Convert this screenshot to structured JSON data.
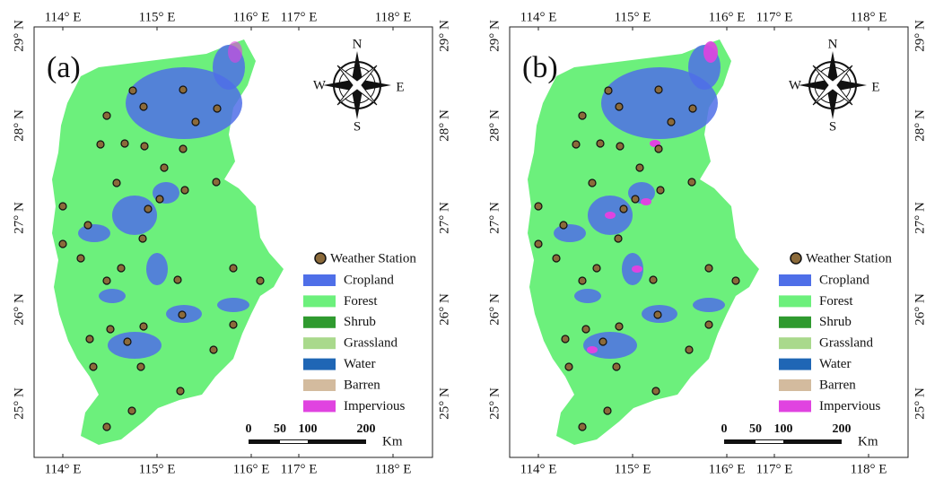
{
  "panels": [
    {
      "label": "(a)"
    },
    {
      "label": "(b)"
    }
  ],
  "axes": {
    "longitude": [
      "114° E",
      "115° E",
      "116° E",
      "117° E",
      "118° E"
    ],
    "latitude": [
      "29° N",
      "28° N",
      "27° N",
      "26° N",
      "25° N"
    ]
  },
  "compass": {
    "north": "N",
    "south": "S",
    "west": "W",
    "east": "E"
  },
  "legend": {
    "station": "Weather Station",
    "classes": [
      {
        "name": "Cropland",
        "color": "#4f6fe8"
      },
      {
        "name": "Forest",
        "color": "#6cf07c"
      },
      {
        "name": "Shrub",
        "color": "#2f9a2f"
      },
      {
        "name": "Grassland",
        "color": "#a9d98c"
      },
      {
        "name": "Water",
        "color": "#1f66b5"
      },
      {
        "name": "Barren",
        "color": "#d3bb9e"
      },
      {
        "name": "Impervious",
        "color": "#e043e0"
      }
    ]
  },
  "scale": {
    "ticks": [
      "0",
      "50",
      "100",
      "200"
    ],
    "unit": "Km"
  }
}
